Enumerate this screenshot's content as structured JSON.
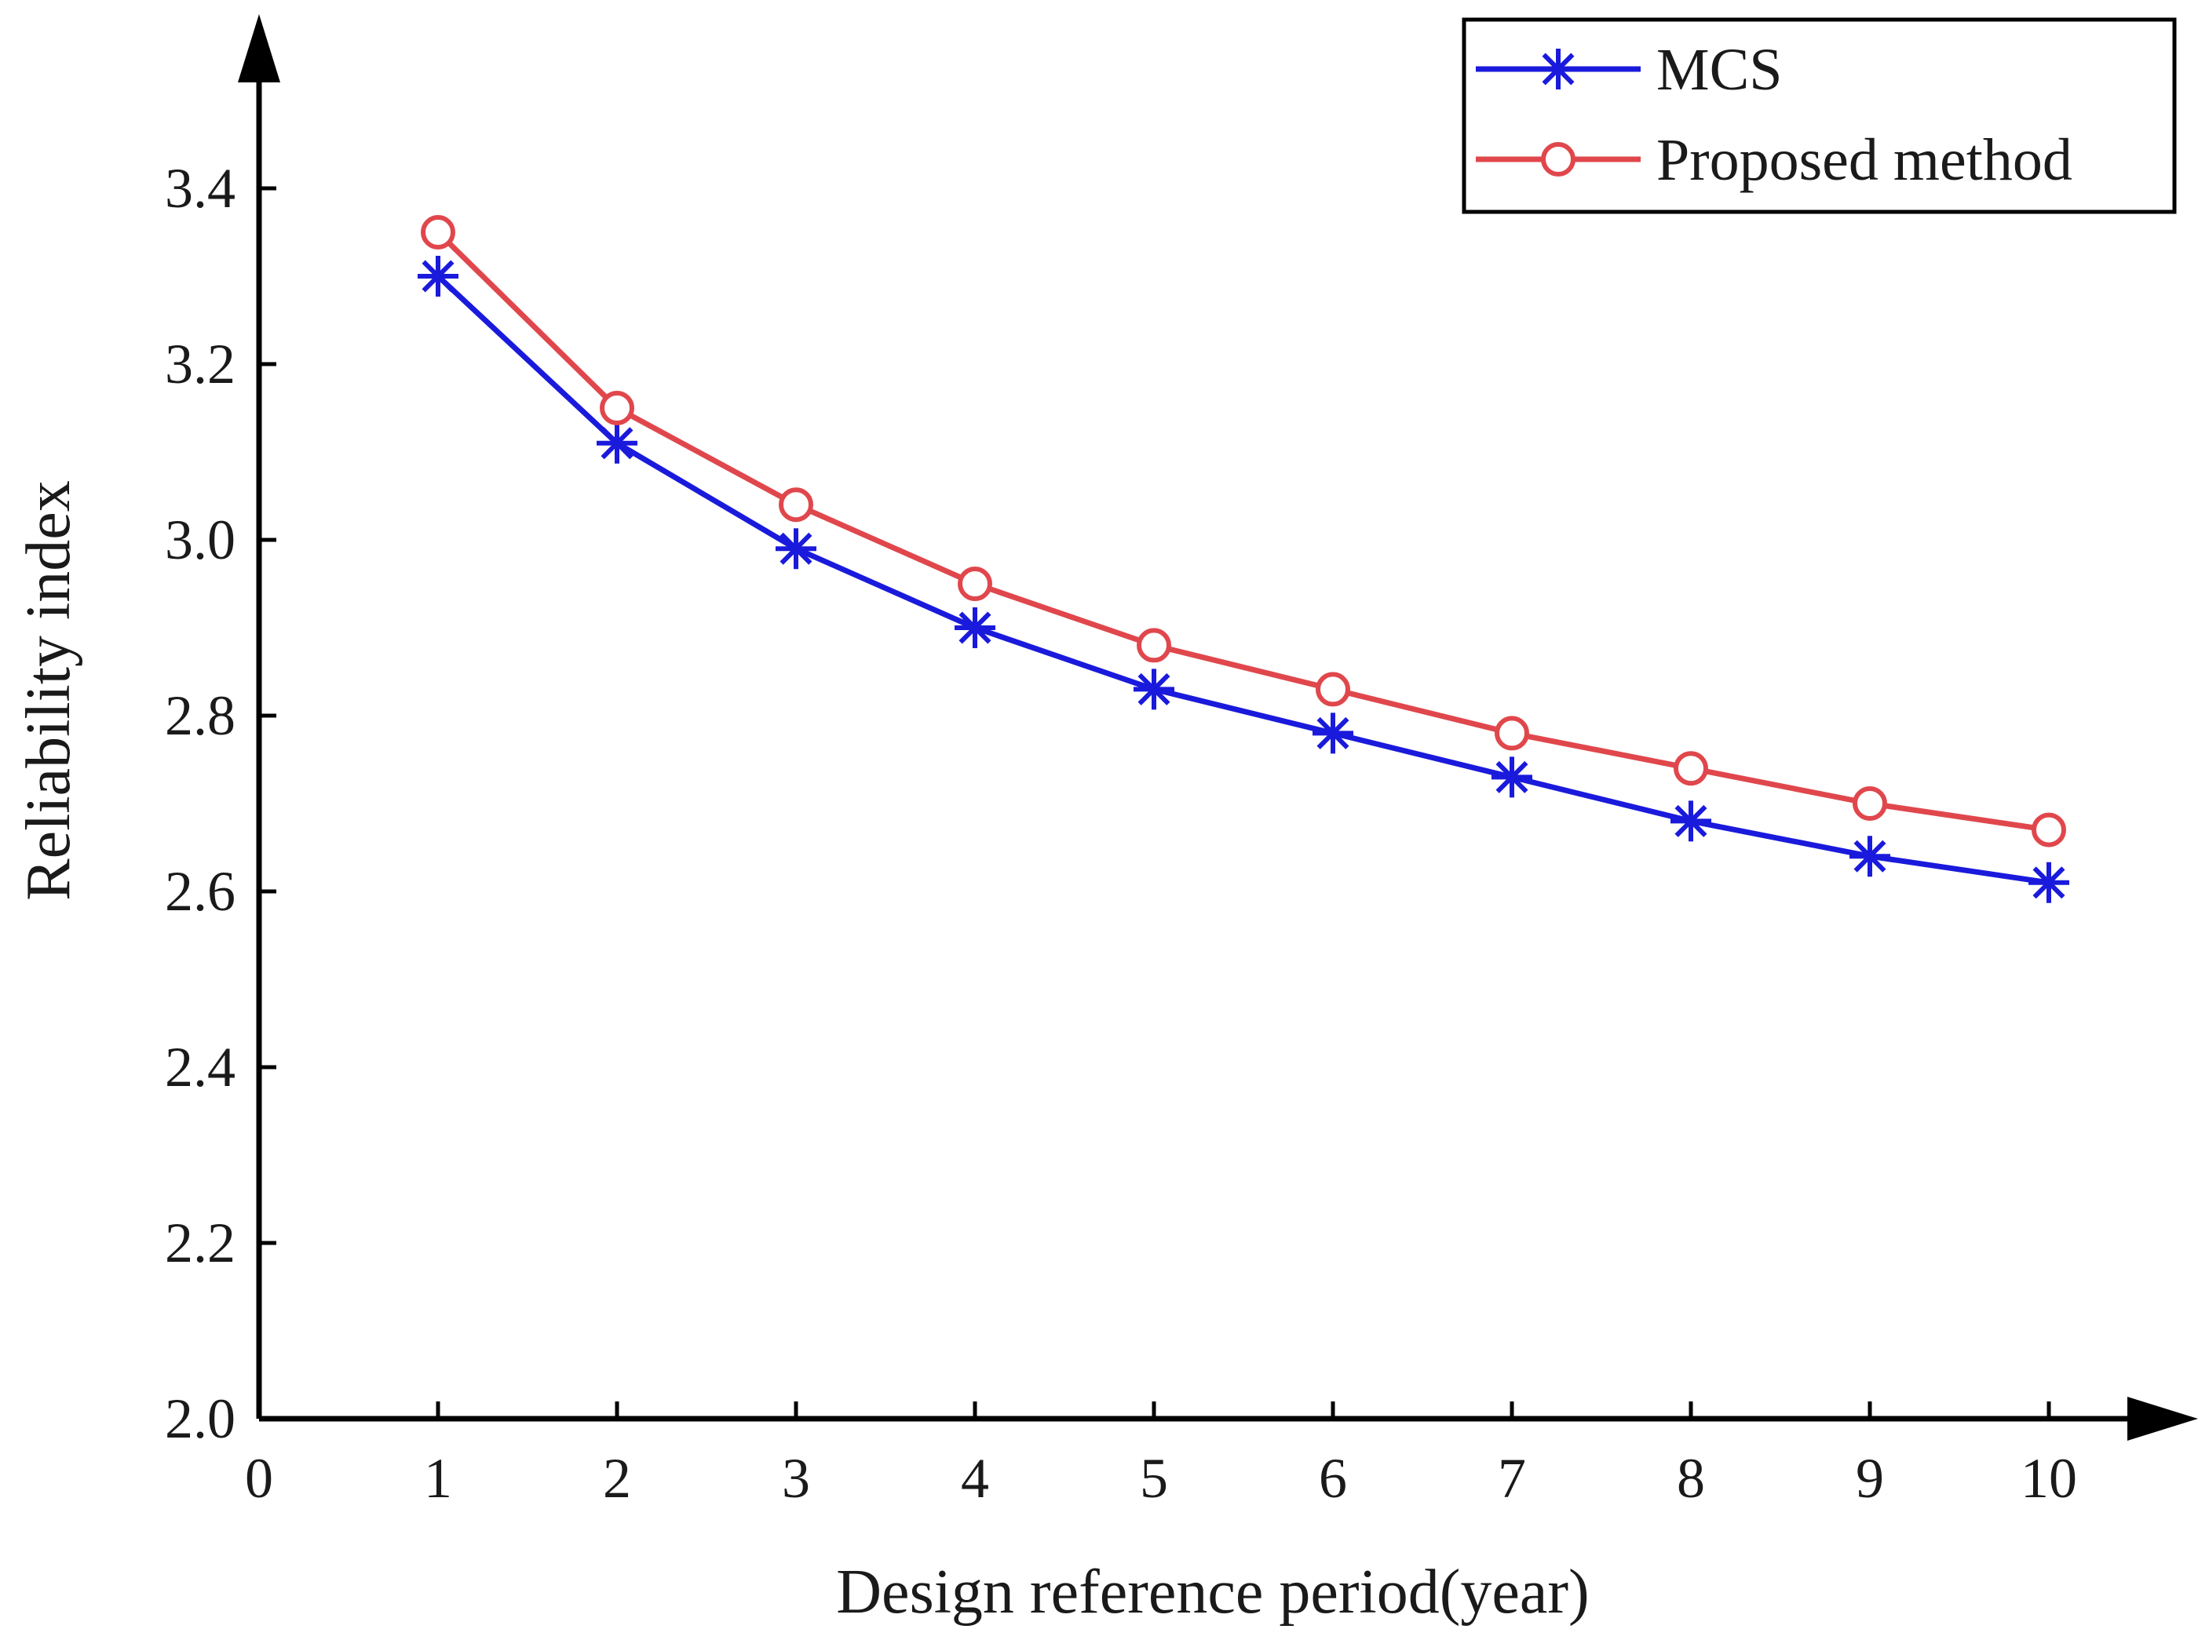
{
  "chart_data": {
    "type": "line",
    "title": "",
    "xlabel": "Design reference period(year)",
    "ylabel": "Reliability index",
    "xlim": [
      0,
      10
    ],
    "ylim": [
      2.0,
      3.5
    ],
    "x_ticks": [
      "0",
      "1",
      "2",
      "3",
      "4",
      "5",
      "6",
      "7",
      "8",
      "9",
      "10"
    ],
    "y_ticks": [
      "2.0",
      "2.2",
      "2.4",
      "2.6",
      "2.8",
      "3.0",
      "3.2",
      "3.4"
    ],
    "x": [
      1,
      2,
      3,
      4,
      5,
      6,
      7,
      8,
      9,
      10
    ],
    "series": [
      {
        "name": "MCS",
        "color": "#1a1adc",
        "marker": "asterisk",
        "values": [
          3.3,
          3.11,
          2.99,
          2.9,
          2.83,
          2.78,
          2.73,
          2.68,
          2.64,
          2.61
        ]
      },
      {
        "name": "Proposed method",
        "color": "#e0474c",
        "marker": "circle",
        "values": [
          3.35,
          3.15,
          3.04,
          2.95,
          2.88,
          2.83,
          2.78,
          2.74,
          2.7,
          2.67
        ]
      }
    ],
    "legend_position": "top-right",
    "grid": false
  }
}
